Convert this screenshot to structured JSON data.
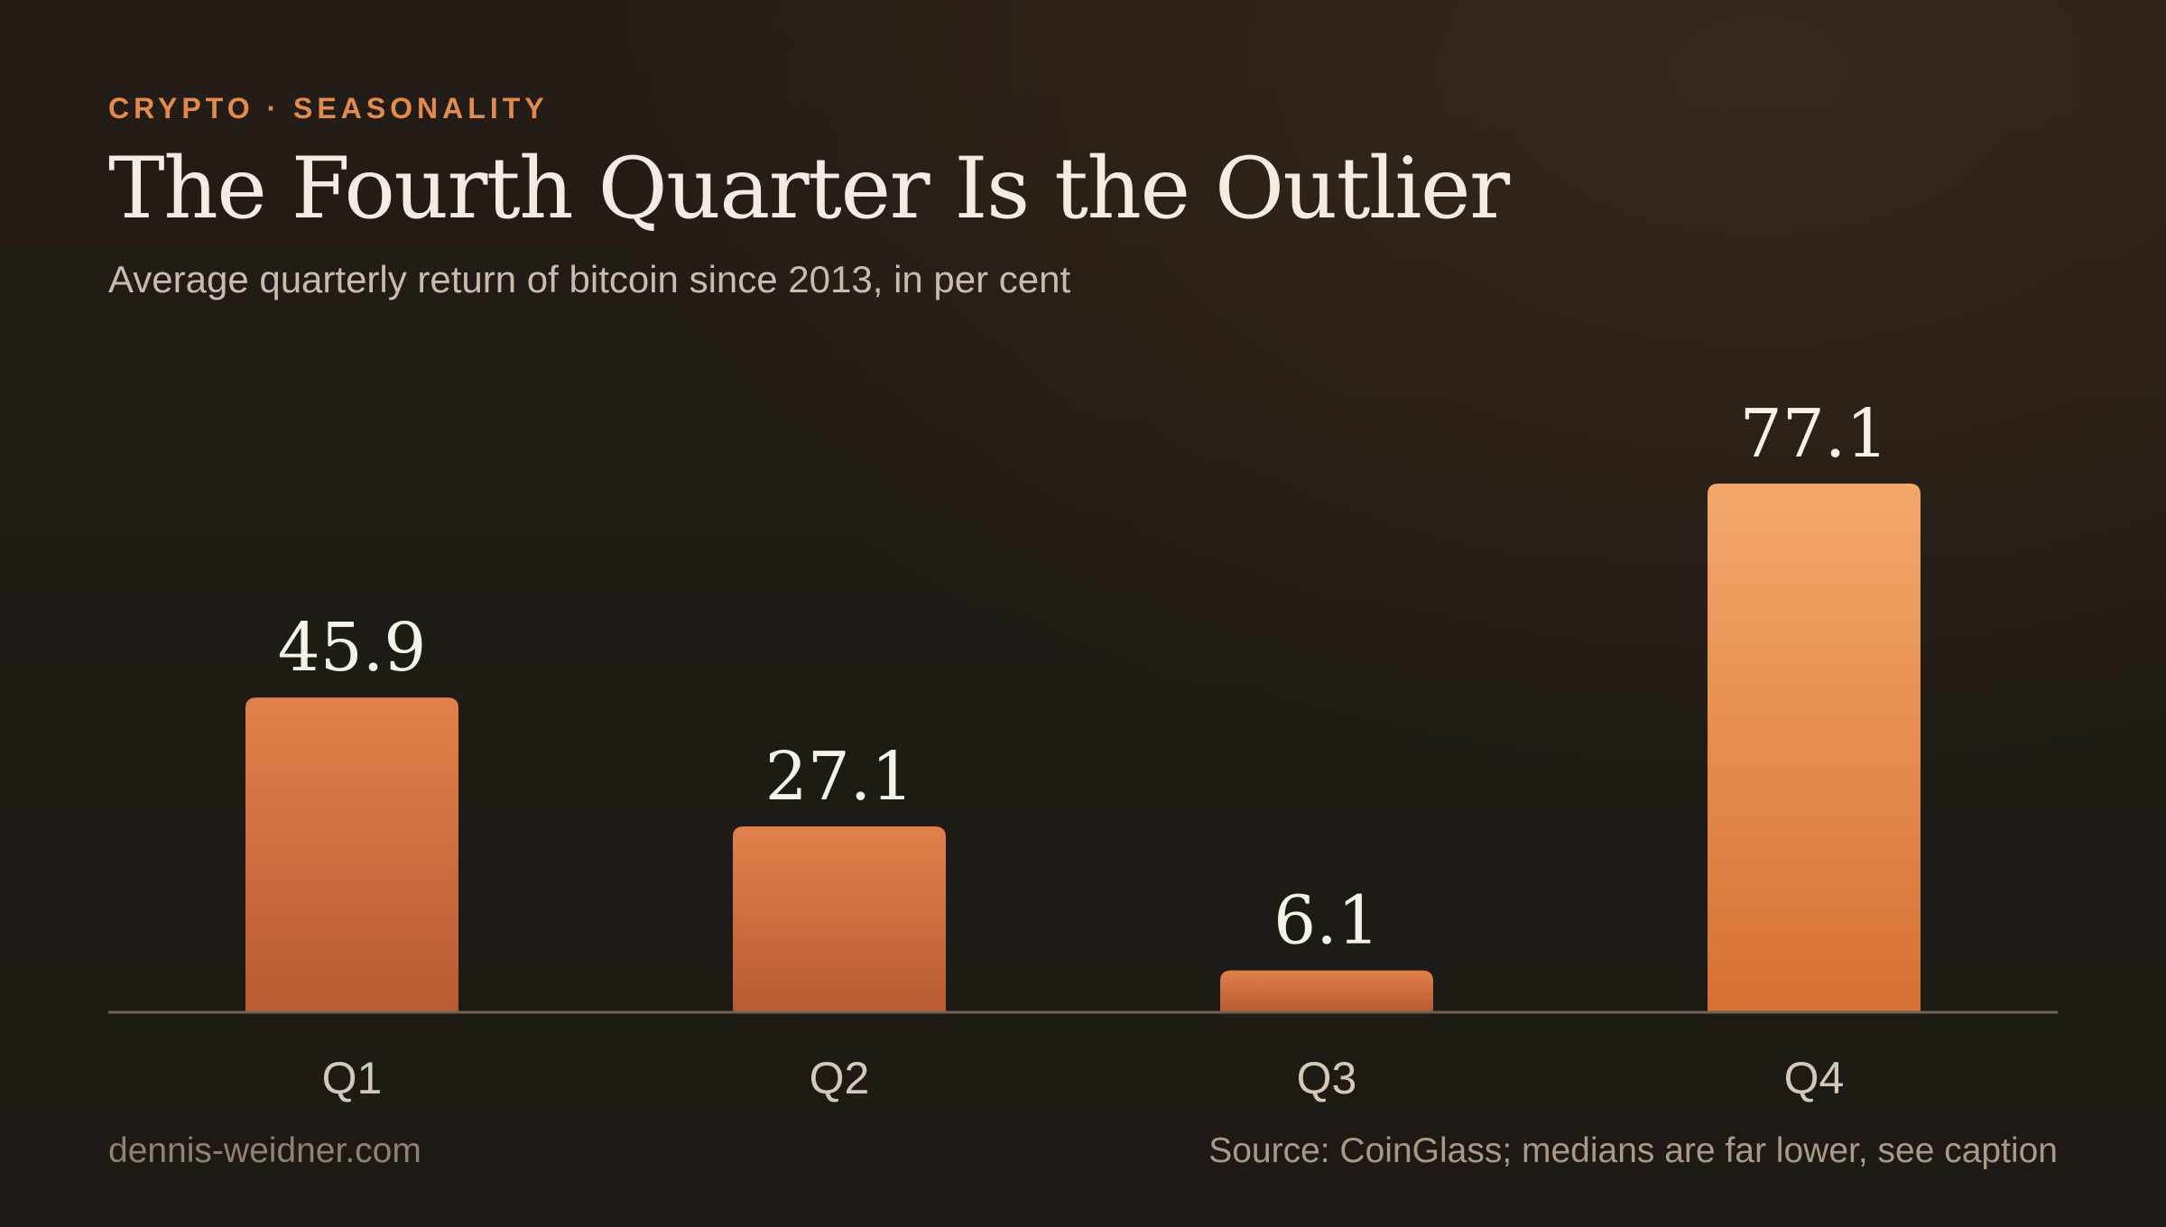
{
  "header": {
    "eyebrow": "CRYPTO · SEASONALITY",
    "title": "The Fourth Quarter Is the Outlier",
    "subtitle": "Average quarterly return of bitcoin since 2013, in per cent"
  },
  "footer": {
    "site": "dennis-weidner.com",
    "source": "Source: CoinGlass; medians are far lower, see caption"
  },
  "colors": {
    "background": "#211b16",
    "accent": "#e38b4f",
    "bar_default_top": "#e0814c",
    "bar_default_bottom": "#b85a31",
    "bar_highlight_top": "#f3a86b",
    "bar_highlight_bottom": "#d67034",
    "baseline": "#6e6254"
  },
  "chart_data": {
    "type": "bar",
    "title": "The Fourth Quarter Is the Outlier",
    "subtitle": "Average quarterly return of bitcoin since 2013, in per cent",
    "categories": [
      "Q1",
      "Q2",
      "Q3",
      "Q4"
    ],
    "values": [
      45.9,
      27.1,
      6.1,
      77.1
    ],
    "value_labels": [
      "45.9",
      "27.1",
      "6.1",
      "77.1"
    ],
    "highlight": "Q4",
    "xlabel": "",
    "ylabel": "",
    "ylim": [
      0,
      80
    ],
    "grid": false,
    "legend": "none"
  }
}
